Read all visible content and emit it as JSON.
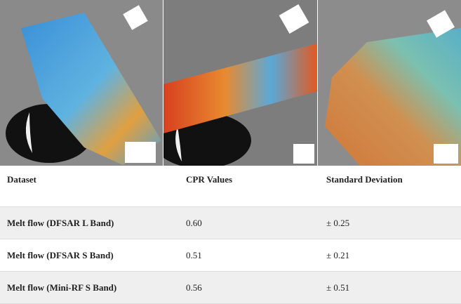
{
  "table": {
    "header": [
      "Dataset",
      "CPR Values",
      "Standard Deviation"
    ],
    "rows": [
      [
        "Melt flow (DFSAR L Band)",
        "0.60",
        "± 0.25"
      ],
      [
        "Melt flow (DFSAR S Band)",
        "0.51",
        "± 0.21"
      ],
      [
        "Melt flow (Mini-RF S Band)",
        "0.56",
        "± 0.51"
      ]
    ]
  }
}
